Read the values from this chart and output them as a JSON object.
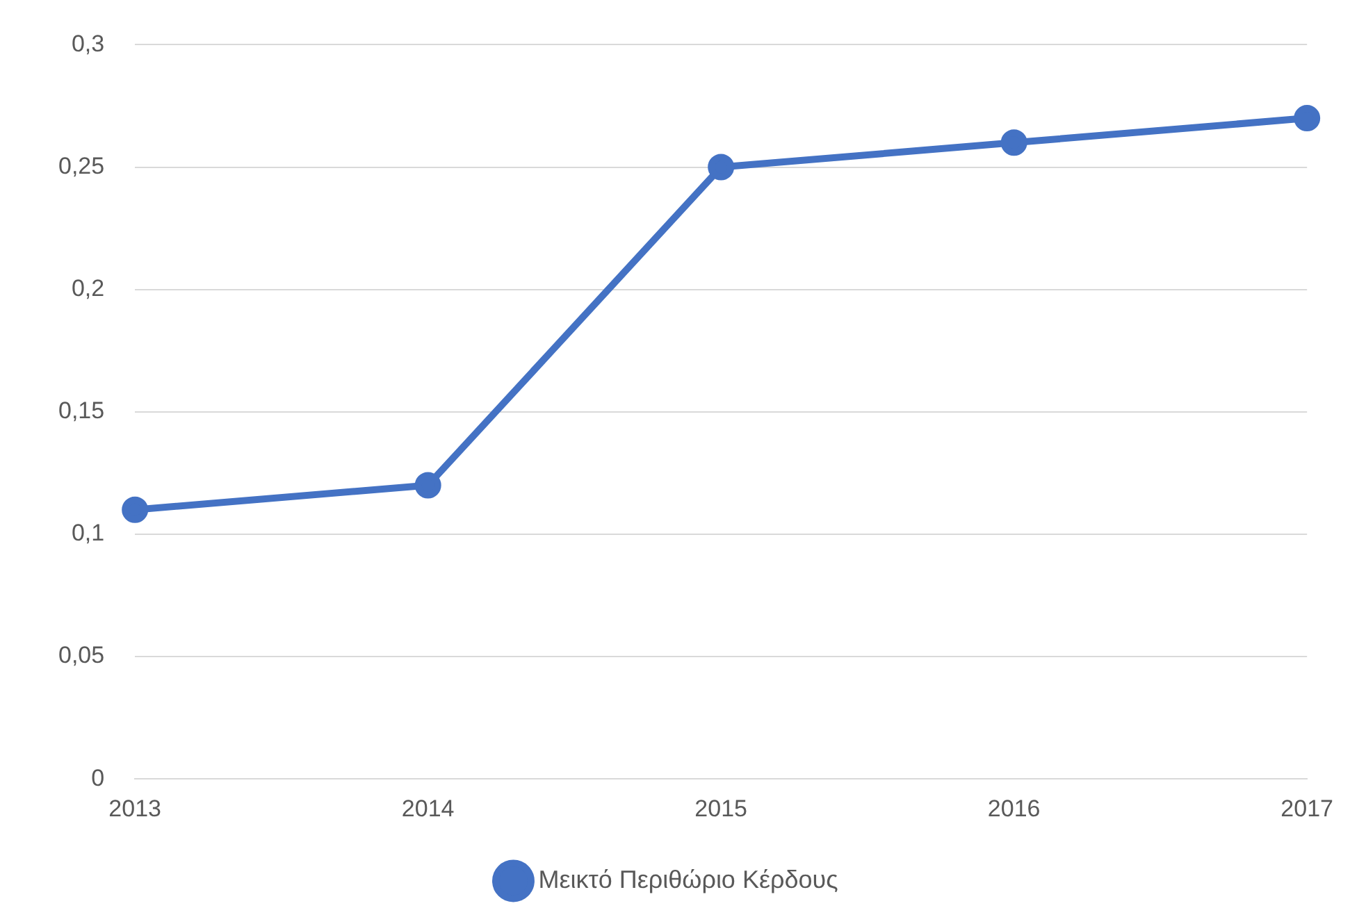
{
  "chart_data": {
    "type": "line",
    "categories": [
      "2013",
      "2014",
      "2015",
      "2016",
      "2017"
    ],
    "series": [
      {
        "name": "Μεικτό Περιθώριο Κέρδους",
        "color": "#4472c4",
        "values": [
          0.11,
          0.12,
          0.25,
          0.26,
          0.27
        ]
      }
    ],
    "ylim": [
      0,
      0.3
    ],
    "yticks": [
      0,
      {
        "value": 0.05,
        "label": "0,05"
      },
      {
        "value": 0.1,
        "label": "0,1"
      },
      {
        "value": 0.15,
        "label": "0,15"
      },
      {
        "value": 0.2,
        "label": "0,2"
      },
      {
        "value": 0.25,
        "label": "0,25"
      },
      {
        "value": 0.3,
        "label": "0,3"
      }
    ],
    "grid": "y",
    "legend": "bottom",
    "marker": "circle",
    "line_style": "solid"
  }
}
